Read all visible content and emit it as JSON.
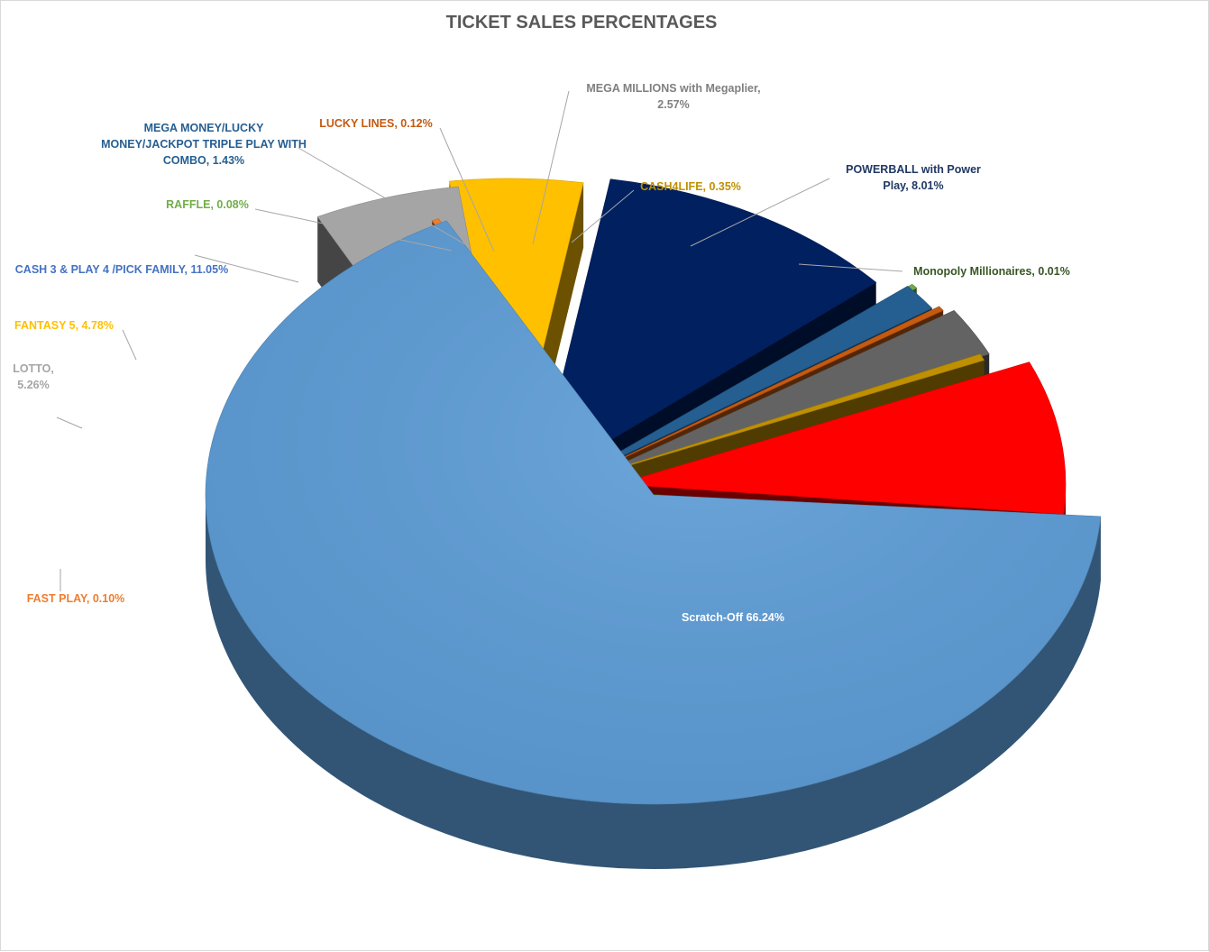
{
  "chart_data": {
    "type": "pie",
    "title": "TICKET SALES PERCENTAGES",
    "slices": [
      {
        "name": "Scratch-Off",
        "value": 66.24,
        "label": "Scratch-Off  66.24%",
        "color": "#5b9bd5"
      },
      {
        "name": "FAST PLAY",
        "value": 0.1,
        "label": "FAST PLAY, 0.10%",
        "color": "#ed7d31"
      },
      {
        "name": "LOTTO",
        "value": 5.26,
        "label": "LOTTO, 5.26%",
        "color": "#a5a5a5"
      },
      {
        "name": "FANTASY 5",
        "value": 4.78,
        "label": "FANTASY 5, 4.78%",
        "color": "#ffc000"
      },
      {
        "name": "CASH 3 & PLAY 4 /PICK FAMILY",
        "value": 11.05,
        "label": "CASH 3 & PLAY 4 /PICK FAMILY, 11.05%",
        "color": "#002060"
      },
      {
        "name": "RAFFLE",
        "value": 0.08,
        "label": "RAFFLE, 0.08%",
        "color": "#70ad47"
      },
      {
        "name": "MEGA MONEY/LUCKY MONEY/JACKPOT TRIPLE PLAY WITH COMBO",
        "value": 1.43,
        "label": "MEGA MONEY/LUCKY MONEY/JACKPOT TRIPLE PLAY WITH COMBO, 1.43%",
        "color": "#255e91"
      },
      {
        "name": "LUCKY LINES",
        "value": 0.12,
        "label": "LUCKY LINES, 0.12%",
        "color": "#c55a11"
      },
      {
        "name": "MEGA MILLIONS with Megaplier",
        "value": 2.57,
        "label": "MEGA MILLIONS with Megaplier, 2.57%",
        "color": "#636363"
      },
      {
        "name": "CASH4LIFE",
        "value": 0.35,
        "label": "CASH4LIFE, 0.35%",
        "color": "#bf9000"
      },
      {
        "name": "POWERBALL with Power Play",
        "value": 8.01,
        "label": "POWERBALL with Power Play, 8.01%",
        "color": "#ff0000"
      },
      {
        "name": "Monopoly Millionaires",
        "value": 0.01,
        "label": "Monopoly Millionaires, 0.01%",
        "color": "#375623"
      }
    ],
    "label_colors": {
      "Scratch-Off": "#ffffff",
      "FAST PLAY": "#ed7d31",
      "LOTTO": "#a5a5a5",
      "FANTASY 5": "#ffc000",
      "CASH 3 & PLAY 4 /PICK FAMILY": "#4472c4",
      "RAFFLE": "#70ad47",
      "MEGA MONEY/LUCKY MONEY/JACKPOT TRIPLE PLAY WITH COMBO": "#255e91",
      "LUCKY LINES": "#c55a11",
      "MEGA MILLIONS with Megaplier": "#7f7f7f",
      "CASH4LIFE": "#bf9000",
      "POWERBALL with Power Play": "#203864",
      "Monopoly Millionaires": "#375623"
    },
    "style": "3d-exploded-pie",
    "legend": "none"
  }
}
